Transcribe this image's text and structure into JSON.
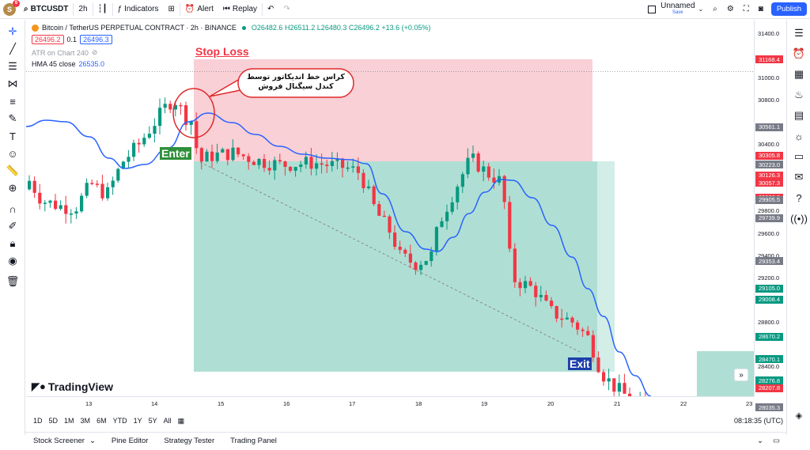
{
  "topbar": {
    "avatar_letter": "S",
    "avatar_badge": "6",
    "symbol": "BTCUSDT",
    "interval": "2h",
    "indicators_label": "Indicators",
    "alert_label": "Alert",
    "replay_label": "Replay",
    "layout_name": "Unnamed",
    "layout_status": "Save",
    "publish_label": "Publish"
  },
  "legend": {
    "title": "Bitcoin / TetherUS PERPETUAL CONTRACT · 2h · BINANCE",
    "ohlc": "O26482.6  H26511.2  L26480.3  C26496.2  +13.6 (+0.05%)",
    "sell_price": "26496.2",
    "spread": "0.1",
    "buy_price": "26496.3",
    "atr": "ATR on Chart 240",
    "hma_label": "HMA 45 close",
    "hma_value": "26535.0"
  },
  "annotations": {
    "stop_loss": "Stop Loss",
    "enter": "Enter",
    "exit": "Exit",
    "callout": "کراس خط اندیکاتور توسط کندل سیگنال فروش"
  },
  "watermark": "TradingView",
  "price_axis": [
    "31400.0",
    "31000.0",
    "30800.0",
    "30400.0",
    "30200.0",
    "29800.0",
    "29600.0",
    "29400.0",
    "29200.0",
    "28800.0",
    "28400.0"
  ],
  "price_badges": [
    {
      "v": "31168.4",
      "c": "#f23645"
    },
    {
      "v": "30561.1",
      "c": "#787b86"
    },
    {
      "v": "30305.8",
      "c": "#f23645"
    },
    {
      "v": "30223.0",
      "c": "#787b86"
    },
    {
      "v": "30126.3",
      "c": "#f23645"
    },
    {
      "v": "30057.3",
      "c": "#f23645"
    },
    {
      "v": "29926.2",
      "c": "#f23645"
    },
    {
      "v": "29905.5",
      "c": "#787b86"
    },
    {
      "v": "29739.9",
      "c": "#787b86"
    },
    {
      "v": "29353.4",
      "c": "#787b86"
    },
    {
      "v": "29105.0",
      "c": "#089981"
    },
    {
      "v": "29008.4",
      "c": "#089981"
    },
    {
      "v": "28670.2",
      "c": "#089981"
    },
    {
      "v": "28470.1",
      "c": "#089981"
    },
    {
      "v": "28276.8",
      "c": "#089981"
    },
    {
      "v": "28207.8",
      "c": "#f23645"
    },
    {
      "v": "28035.3",
      "c": "#787b86"
    }
  ],
  "time_axis": [
    "13",
    "14",
    "15",
    "16",
    "17",
    "18",
    "19",
    "20",
    "21",
    "22",
    "23"
  ],
  "ranges": [
    "1D",
    "5D",
    "1M",
    "3M",
    "6M",
    "YTD",
    "1Y",
    "5Y",
    "All"
  ],
  "clock": "08:18:35 (UTC)",
  "footer_tabs": [
    "Stock Screener",
    "Pine Editor",
    "Strategy Tester",
    "Trading Panel"
  ],
  "colors": {
    "up": "#089981",
    "down": "#f23645",
    "hma": "#2962ff",
    "sl_zone": "#f7c8cf",
    "tp_zone": "#a6dccf"
  }
}
